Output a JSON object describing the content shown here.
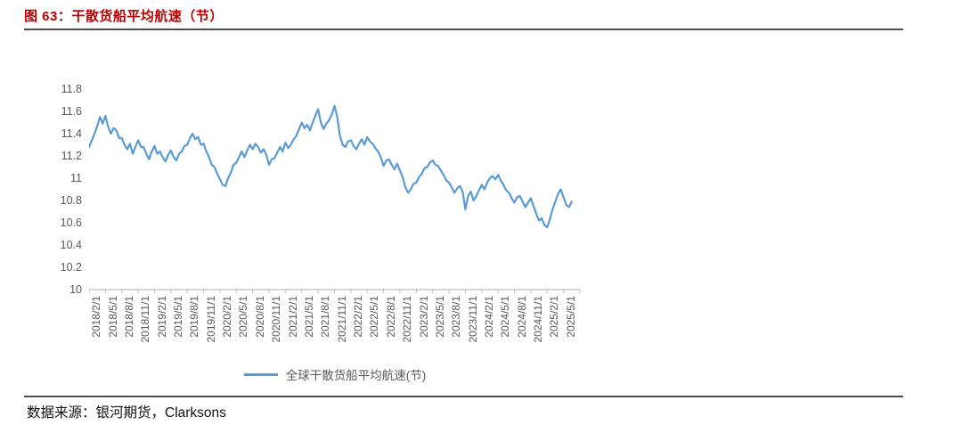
{
  "figure": {
    "title": "图 63：干散货船平均航速（节）",
    "source": "数据来源：银河期货，Clarksons"
  },
  "colors": {
    "title_red": "#C00000",
    "line_blue": "#5B9BD5",
    "axis_label_gray": "#595959",
    "axis_line_gray": "#BFBFBF",
    "rule_dark": "#4D4D4D"
  },
  "chart_data": {
    "type": "line",
    "title": "干散货船平均航速（节）",
    "legend": [
      "全球干散货船平均航速(节)"
    ],
    "legend_position": "bottom",
    "grid": false,
    "ylim": [
      10,
      11.8
    ],
    "ytick_step": 0.2,
    "yticks": [
      "11.8",
      "11.6",
      "11.4",
      "11.2",
      "11",
      "10.8",
      "10.6",
      "10.4",
      "10.2",
      "10"
    ],
    "x_tick_labels": [
      "2018/2/1",
      "2018/5/1",
      "2018/8/1",
      "2018/11/1",
      "2019/2/1",
      "2019/5/1",
      "2019/8/1",
      "2019/11/1",
      "2020/2/1",
      "2020/5/1",
      "2020/8/1",
      "2020/11/1",
      "2021/2/1",
      "2021/5/1",
      "2021/8/1",
      "2021/11/1",
      "2022/2/1",
      "2022/5/1",
      "2022/8/1",
      "2022/11/1",
      "2023/2/1",
      "2023/5/1",
      "2023/8/1",
      "2023/11/1",
      "2024/2/1",
      "2024/5/1",
      "2024/8/1",
      "2024/11/1",
      "2025/2/1",
      "2025/5/1"
    ],
    "x_start": "2018/2/1",
    "x_end": "2025/6/15",
    "sampling": "approx. semi-monthly readings estimated from plot",
    "months_per_point": 0.5,
    "axis_total_months": 90,
    "series": [
      {
        "name": "全球干散货船平均航速(节)",
        "values": [
          11.28,
          11.34,
          11.4,
          11.47,
          11.55,
          11.49,
          11.56,
          11.46,
          11.4,
          11.45,
          11.43,
          11.36,
          11.36,
          11.3,
          11.26,
          11.31,
          11.22,
          11.28,
          11.34,
          11.28,
          11.28,
          11.22,
          11.17,
          11.24,
          11.29,
          11.22,
          11.24,
          11.19,
          11.15,
          11.21,
          11.25,
          11.19,
          11.16,
          11.22,
          11.24,
          11.29,
          11.3,
          11.36,
          11.4,
          11.35,
          11.37,
          11.3,
          11.31,
          11.24,
          11.19,
          11.12,
          11.1,
          11.04,
          10.99,
          10.94,
          10.93,
          11.0,
          11.05,
          11.12,
          11.14,
          11.19,
          11.24,
          11.19,
          11.25,
          11.3,
          11.26,
          11.31,
          11.28,
          11.23,
          11.26,
          11.21,
          11.12,
          11.17,
          11.18,
          11.23,
          11.28,
          11.24,
          11.32,
          11.27,
          11.3,
          11.35,
          11.38,
          11.44,
          11.5,
          11.45,
          11.48,
          11.43,
          11.5,
          11.56,
          11.62,
          11.5,
          11.44,
          11.49,
          11.52,
          11.57,
          11.65,
          11.55,
          11.38,
          11.3,
          11.28,
          11.33,
          11.34,
          11.29,
          11.26,
          11.31,
          11.35,
          11.3,
          11.37,
          11.33,
          11.31,
          11.27,
          11.24,
          11.19,
          11.11,
          11.16,
          11.17,
          11.12,
          11.08,
          11.13,
          11.07,
          11.01,
          10.92,
          10.87,
          10.9,
          10.95,
          10.96,
          11.01,
          11.04,
          11.09,
          11.1,
          11.14,
          11.16,
          11.12,
          11.11,
          11.07,
          11.03,
          10.98,
          10.96,
          10.92,
          10.87,
          10.91,
          10.93,
          10.88,
          10.72,
          10.84,
          10.88,
          10.8,
          10.84,
          10.89,
          10.94,
          10.9,
          10.96,
          11.0,
          11.02,
          10.99,
          11.03,
          10.98,
          10.94,
          10.89,
          10.87,
          10.82,
          10.78,
          10.83,
          10.84,
          10.79,
          10.74,
          10.78,
          10.82,
          10.75,
          10.68,
          10.62,
          10.64,
          10.58,
          10.56,
          10.63,
          10.72,
          10.79,
          10.86,
          10.9,
          10.83,
          10.76,
          10.74,
          10.79
        ]
      }
    ]
  }
}
